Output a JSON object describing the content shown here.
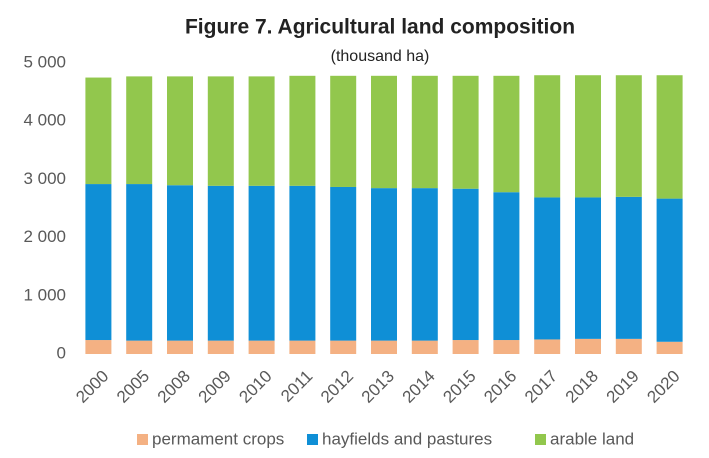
{
  "chart_data": {
    "type": "stacked_bar",
    "title": "Figure 7. Agricultural land composition",
    "subtitle": "(thousand ha)",
    "categories": [
      "2000",
      "2005",
      "2008",
      "2009",
      "2010",
      "2011",
      "2012",
      "2013",
      "2014",
      "2015",
      "2016",
      "2017",
      "2018",
      "2019",
      "2020"
    ],
    "series": [
      {
        "name": "permament crops",
        "color": "#f4b183",
        "values": [
          240,
          230,
          230,
          230,
          230,
          230,
          230,
          230,
          230,
          240,
          240,
          250,
          260,
          260,
          210
        ]
      },
      {
        "name": "hayfields and pastures",
        "color": "#0f8fd6",
        "values": [
          2680,
          2690,
          2670,
          2660,
          2660,
          2660,
          2640,
          2620,
          2620,
          2600,
          2540,
          2440,
          2430,
          2440,
          2460
        ]
      },
      {
        "name": "arable land",
        "color": "#92c74d",
        "values": [
          1830,
          1850,
          1870,
          1880,
          1880,
          1890,
          1910,
          1930,
          1930,
          1940,
          2000,
          2100,
          2100,
          2090,
          2120
        ]
      }
    ],
    "ylim": [
      0,
      5000
    ],
    "yticks": [
      0,
      {
        "value": 1000,
        "label": "1 000"
      },
      {
        "value": 2000,
        "label": "2 000"
      },
      {
        "value": 3000,
        "label": "3 000"
      },
      {
        "value": 4000,
        "label": "4 000"
      },
      {
        "value": 5000,
        "label": "5 000"
      }
    ],
    "grid": false,
    "legend": "bottom"
  }
}
